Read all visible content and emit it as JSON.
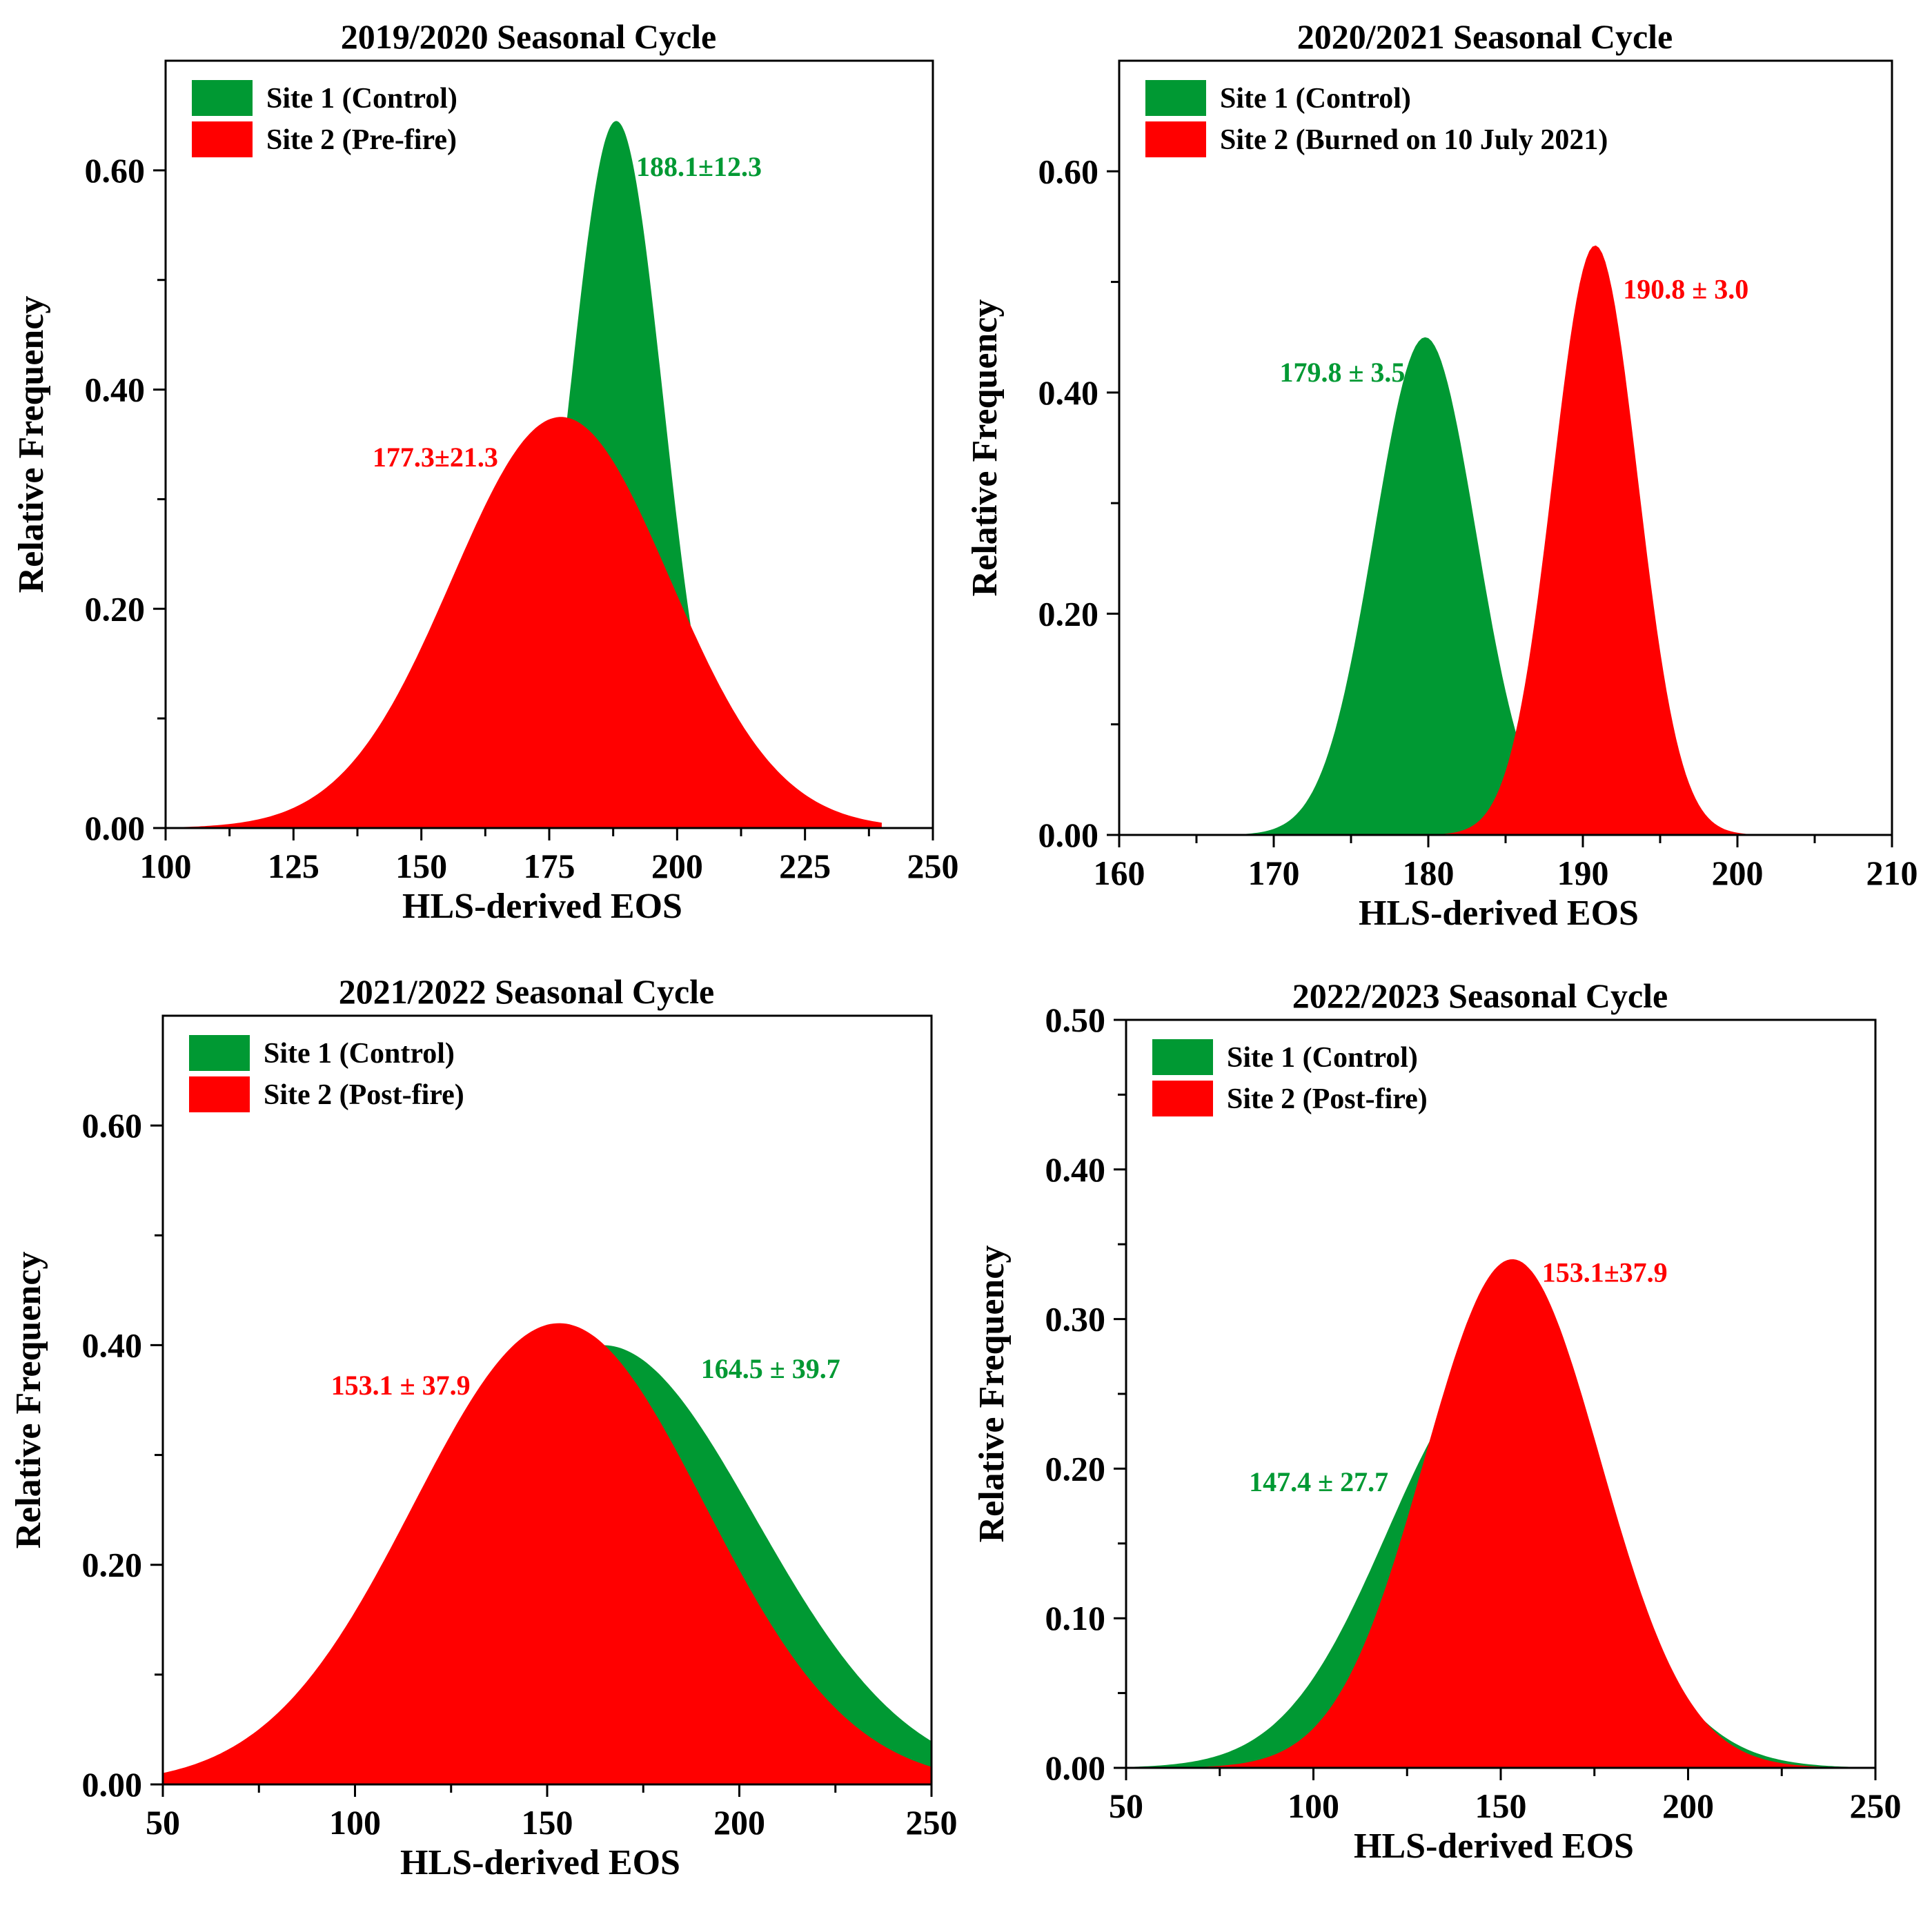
{
  "colors": {
    "control": "#009933",
    "burned": "#ff0000",
    "axis": "#000000"
  },
  "chart_data": [
    {
      "type": "area",
      "title": "2019/2020 Seasonal Cycle",
      "xlabel": "HLS-derived EOS",
      "ylabel": "Relative Frequency",
      "xlim": [
        100,
        250
      ],
      "ylim": [
        0,
        0.7
      ],
      "xticks": [
        100,
        125,
        150,
        175,
        200,
        225,
        250
      ],
      "xtick_labels": [
        "100",
        "125",
        "150",
        "175",
        "200",
        "225",
        "250"
      ],
      "yticks": [
        0,
        0.2,
        0.4,
        0.6
      ],
      "ytick_labels": [
        "0.00",
        "0.20",
        "0.40",
        "0.60"
      ],
      "legend": [
        "Site 1 (Control)",
        "Site 2 (Pre-fire)"
      ],
      "legend_position": "top-left",
      "series": [
        {
          "name": "Site 1 (Control)",
          "color_key": "control",
          "mean": 188.1,
          "peak": 0.645,
          "domain": [
            160,
            212
          ],
          "label": "188.1±12.3",
          "label_x": 192,
          "label_y": 0.595,
          "label_anchor": "start"
        },
        {
          "name": "Site 2 (Pre-fire)",
          "color_key": "burned",
          "mean": 177.3,
          "peak": 0.375,
          "domain": [
            100,
            240
          ],
          "label": "177.3±21.3",
          "label_x": 165,
          "label_y": 0.33,
          "label_anchor": "end"
        }
      ]
    },
    {
      "type": "area",
      "title": "2020/2021 Seasonal Cycle",
      "xlabel": "HLS-derived EOS",
      "ylabel": "Relative Frequency",
      "xlim": [
        160,
        210
      ],
      "ylim": [
        0,
        0.7
      ],
      "xticks": [
        160,
        170,
        180,
        190,
        200,
        210
      ],
      "xtick_labels": [
        "160",
        "170",
        "180",
        "190",
        "200",
        "210"
      ],
      "yticks": [
        0,
        0.2,
        0.4,
        0.6
      ],
      "ytick_labels": [
        "0.00",
        "0.20",
        "0.40",
        "0.60"
      ],
      "legend": [
        "Site 1 (Control)",
        "Site 2 (Burned on 10 July 2021)"
      ],
      "legend_position": "top-left",
      "series": [
        {
          "name": "Site 1 (Control)",
          "color_key": "control",
          "mean": 179.8,
          "peak": 0.45,
          "domain": [
            160,
            210
          ],
          "label": "179.8 ± 3.5",
          "label_x": 178.5,
          "label_y": 0.41,
          "label_anchor": "end"
        },
        {
          "name": "Site 2 (Burned on 10 July 2021)",
          "color_key": "burned",
          "mean": 190.8,
          "peak": 0.533,
          "domain": [
            160,
            210
          ],
          "label": "190.8 ± 3.0",
          "label_x": 192.6,
          "label_y": 0.485,
          "label_anchor": "start"
        }
      ]
    },
    {
      "type": "area",
      "title": "2021/2022 Seasonal Cycle",
      "xlabel": "HLS-derived EOS",
      "ylabel": "Relative Frequency",
      "xlim": [
        50,
        250
      ],
      "ylim": [
        0,
        0.7
      ],
      "xticks": [
        50,
        100,
        150,
        200,
        250
      ],
      "xtick_labels": [
        "50",
        "100",
        "150",
        "200",
        "250"
      ],
      "yticks": [
        0,
        0.2,
        0.4,
        0.6
      ],
      "ytick_labels": [
        "0.00",
        "0.20",
        "0.40",
        "0.60"
      ],
      "legend": [
        "Site 1 (Control)",
        "Site 2 (Post-fire)"
      ],
      "legend_position": "top-left",
      "series": [
        {
          "name": "Site 1 (Control)",
          "color_key": "control",
          "mean": 164.5,
          "peak": 0.4,
          "domain": [
            50,
            250
          ],
          "label": "164.5 ± 39.7",
          "label_x": 190,
          "label_y": 0.37,
          "label_anchor": "start"
        },
        {
          "name": "Site 2 (Post-fire)",
          "color_key": "burned",
          "mean": 153.1,
          "peak": 0.42,
          "domain": [
            50,
            250
          ],
          "label": "153.1 ± 37.9",
          "label_x": 130,
          "label_y": 0.355,
          "label_anchor": "end"
        }
      ]
    },
    {
      "type": "area",
      "title": "2022/2023 Seasonal Cycle",
      "xlabel": "HLS-derived EOS",
      "ylabel": "Relative Frequency",
      "xlim": [
        50,
        250
      ],
      "ylim": [
        0,
        0.5
      ],
      "xticks": [
        50,
        100,
        150,
        200,
        250
      ],
      "xtick_labels": [
        "50",
        "100",
        "150",
        "200",
        "250"
      ],
      "yticks": [
        0,
        0.1,
        0.2,
        0.3,
        0.4,
        0.5
      ],
      "ytick_labels": [
        "0.00",
        "0.10",
        "0.20",
        "0.30",
        "0.40",
        "0.50"
      ],
      "legend": [
        "Site 1 (Control)",
        "Site 2 (Post-fire)"
      ],
      "legend_position": "top-left",
      "series": [
        {
          "name": "Site 1 (Control)",
          "color_key": "control",
          "mean": 147.4,
          "peak": 0.26,
          "domain": [
            50,
            250
          ],
          "label": "147.4 ± 27.7",
          "label_x": 120,
          "label_y": 0.185,
          "label_anchor": "end"
        },
        {
          "name": "Site 2 (Post-fire)",
          "color_key": "burned",
          "mean": 153.1,
          "peak": 0.34,
          "domain": [
            50,
            250
          ],
          "label": "153.1±37.9",
          "label_x": 161,
          "label_y": 0.325,
          "label_anchor": "start"
        }
      ]
    }
  ]
}
